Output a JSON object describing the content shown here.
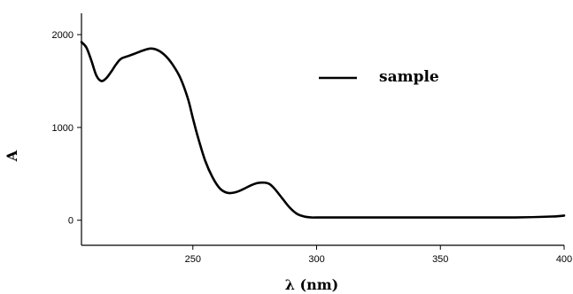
{
  "chart_data": {
    "type": "line",
    "title": "",
    "xlabel": "λ (nm)",
    "ylabel": "A",
    "xlim": [
      205,
      400
    ],
    "ylim": [
      -270,
      2230
    ],
    "x_ticks": [
      250,
      300,
      350,
      400
    ],
    "x_tick_labels": [
      "250",
      "300",
      "350",
      "400"
    ],
    "y_ticks": [
      0,
      1000,
      2000
    ],
    "y_tick_labels": [
      "0",
      "1000",
      "2000"
    ],
    "grid": false,
    "legend": "top-right",
    "series": [
      {
        "name": "sample",
        "color": "#000000",
        "x": [
          205,
          207,
          209,
          211,
          213,
          215,
          217,
          219,
          221,
          224,
          227,
          230,
          233,
          236,
          239,
          242,
          245,
          248,
          250,
          252,
          255,
          258,
          261,
          264,
          267,
          270,
          273,
          276,
          279,
          281,
          283,
          286,
          289,
          292,
          295,
          298,
          300,
          310,
          320,
          340,
          360,
          380,
          395,
          400
        ],
        "y": [
          1920,
          1860,
          1720,
          1560,
          1500,
          1530,
          1600,
          1680,
          1740,
          1770,
          1800,
          1830,
          1850,
          1830,
          1770,
          1670,
          1530,
          1310,
          1100,
          900,
          640,
          460,
          340,
          295,
          300,
          330,
          370,
          400,
          405,
          390,
          340,
          240,
          140,
          70,
          40,
          30,
          30,
          30,
          30,
          30,
          30,
          30,
          40,
          50
        ]
      }
    ]
  }
}
